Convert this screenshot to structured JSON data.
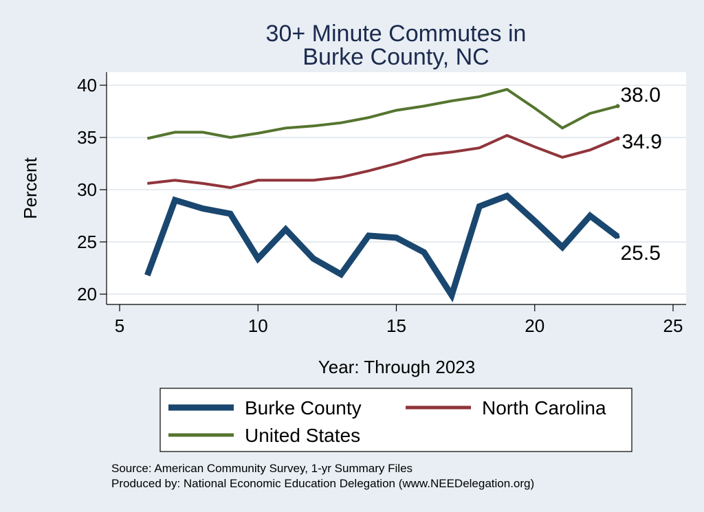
{
  "chart_data": {
    "type": "line",
    "title_lines": [
      "30+ Minute Commutes in",
      "Burke County, NC"
    ],
    "xlabel": "Year: Through 2023",
    "ylabel": "Percent",
    "xlim": [
      5,
      25
    ],
    "ylim": [
      19.5,
      41
    ],
    "x_ticks": [
      5,
      10,
      15,
      20,
      25
    ],
    "y_ticks": [
      20,
      25,
      30,
      35,
      40
    ],
    "grid": "horizontal",
    "legend_position": "bottom",
    "series": [
      {
        "name": "Burke County",
        "color": "#1a476f",
        "end_label": "25.5",
        "x": [
          6,
          7,
          8,
          9,
          10,
          11,
          12,
          13,
          14,
          15,
          16,
          17,
          18,
          19,
          20,
          21,
          22,
          23
        ],
        "values": [
          21.8,
          29.0,
          28.2,
          27.7,
          23.4,
          26.2,
          23.4,
          21.9,
          25.6,
          25.4,
          24.0,
          19.9,
          28.4,
          29.4,
          27.0,
          24.5,
          27.5,
          25.5
        ]
      },
      {
        "name": "North Carolina",
        "color": "#90353b",
        "end_label": "34.9",
        "x": [
          6,
          7,
          8,
          9,
          10,
          11,
          12,
          13,
          14,
          15,
          16,
          17,
          18,
          19,
          20,
          21,
          22,
          23
        ],
        "values": [
          30.6,
          30.9,
          30.6,
          30.2,
          30.9,
          30.9,
          30.9,
          31.2,
          31.8,
          32.5,
          33.3,
          33.6,
          34.0,
          35.2,
          34.1,
          33.1,
          33.8,
          34.9
        ]
      },
      {
        "name": "United States",
        "color": "#55752f",
        "end_label": "38.0",
        "x": [
          6,
          7,
          8,
          9,
          10,
          11,
          12,
          13,
          14,
          15,
          16,
          17,
          18,
          19,
          20,
          21,
          22,
          23
        ],
        "values": [
          34.9,
          35.5,
          35.5,
          35.0,
          35.4,
          35.9,
          36.1,
          36.4,
          36.9,
          37.6,
          38.0,
          38.5,
          38.9,
          39.6,
          37.8,
          35.9,
          37.3,
          38.0
        ]
      }
    ],
    "legend_entries": [
      "Burke County",
      "North Carolina",
      "United States"
    ],
    "source_lines": [
      "Source: American Community Survey, 1-yr Summary Files",
      "Produced by: National Economic Education Delegation (www.NEEDelegation.org)"
    ]
  }
}
